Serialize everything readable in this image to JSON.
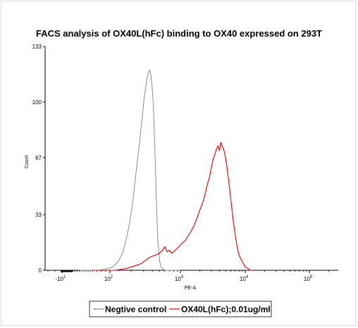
{
  "chart_data": {
    "type": "line",
    "title": "FACS analysis of OX40L(hFc) binding to OX40 expressed on 293T",
    "xlabel": "PE-A",
    "ylabel": "Count",
    "x_scale": "biexponential",
    "x_ticks": [
      {
        "value": -10,
        "base": "-10",
        "exp": "1"
      },
      {
        "value": 100,
        "base": "10",
        "exp": "2"
      },
      {
        "value": 1000,
        "base": "10",
        "exp": "3"
      },
      {
        "value": 10000,
        "base": "10",
        "exp": "4"
      },
      {
        "value": 100000,
        "base": "10",
        "exp": "5"
      }
    ],
    "y_ticks": [
      0,
      33,
      67,
      100,
      133
    ],
    "ylim": [
      0,
      133
    ],
    "grid": false,
    "legend_position": "bottom",
    "series": [
      {
        "name": "Negtive control",
        "color": "#7f7f7f",
        "x": [
          30,
          75,
          95,
          110,
          130,
          150,
          170,
          190,
          210,
          230,
          250,
          270,
          290,
          305,
          320,
          335,
          350,
          365,
          380,
          395,
          410,
          420,
          430,
          440,
          450,
          460,
          470,
          480,
          495,
          510,
          530,
          560,
          600,
          650,
          700,
          800,
          900,
          1000
        ],
        "y": [
          0,
          0,
          1,
          2,
          5,
          10,
          18,
          28,
          40,
          55,
          68,
          80,
          92,
          102,
          108,
          114,
          117,
          119,
          116,
          110,
          100,
          90,
          78,
          65,
          50,
          37,
          26,
          17,
          10,
          5,
          2,
          1,
          0,
          0,
          0,
          0,
          0,
          0
        ]
      },
      {
        "name": "OX40L(hFc);0.01ug/ml",
        "color": "#e00000",
        "x": [
          60,
          120,
          170,
          200,
          240,
          280,
          320,
          380,
          440,
          500,
          560,
          600,
          650,
          700,
          750,
          800,
          900,
          1000,
          1200,
          1400,
          1600,
          1800,
          2000,
          2200,
          2400,
          2600,
          2800,
          3000,
          3200,
          3400,
          3600,
          3800,
          4000,
          4200,
          4500,
          4800,
          5200,
          5600,
          6000,
          6500,
          7000,
          7500,
          8000,
          9000,
          10000,
          11000,
          12000,
          13000
        ],
        "y": [
          0,
          0,
          1,
          2,
          3,
          4,
          6,
          8,
          9,
          10,
          12,
          14,
          11,
          12,
          10,
          11,
          13,
          15,
          18,
          22,
          26,
          31,
          36,
          40,
          45,
          51,
          55,
          61,
          66,
          69,
          72,
          74,
          71,
          76,
          73,
          70,
          62,
          52,
          42,
          30,
          21,
          14,
          9,
          5,
          2,
          1,
          0,
          0
        ]
      }
    ]
  }
}
